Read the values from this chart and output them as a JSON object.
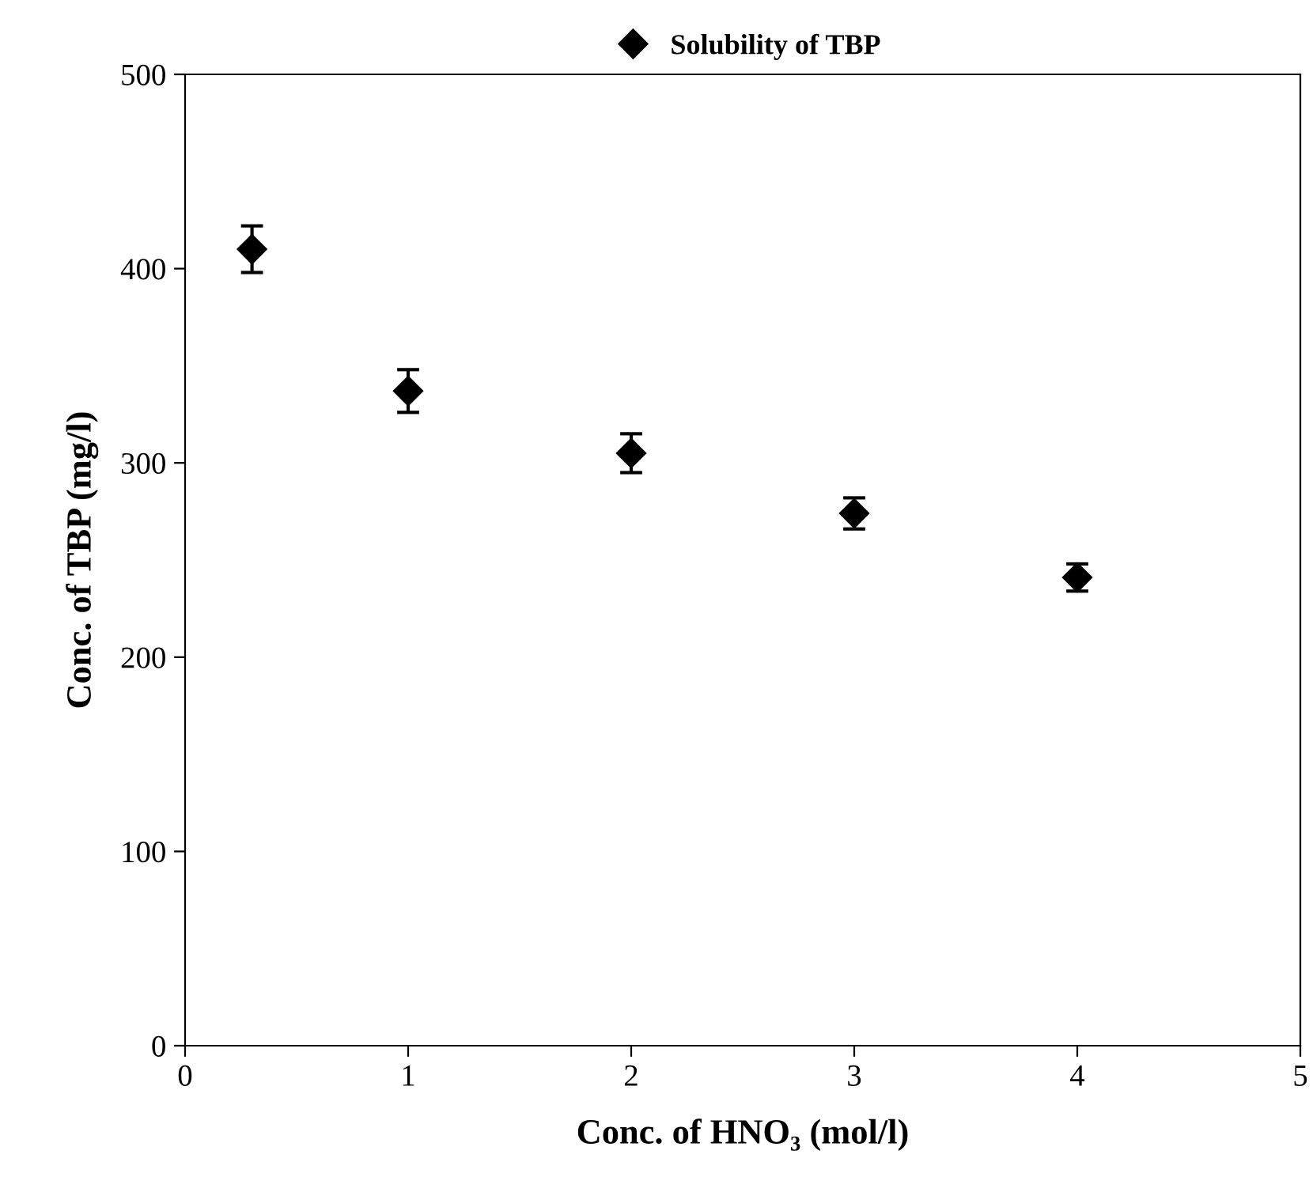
{
  "chart_data": {
    "type": "scatter",
    "xlabel": "Conc. of HNO₃ (mol/l)",
    "ylabel": "Conc. of TBP (mg/l)",
    "series": [
      {
        "name": "Solubility of TBP",
        "color": "#000000",
        "x": [
          0.3,
          1,
          2,
          3,
          4
        ],
        "values": [
          410,
          337,
          305,
          274,
          241
        ],
        "errors": [
          12,
          11,
          10,
          8,
          7
        ]
      }
    ],
    "xlim": [
      0,
      5
    ],
    "xticks": [
      0,
      1,
      2,
      3,
      4,
      5
    ],
    "ylim": [
      0,
      500
    ],
    "yticks": [
      0,
      100,
      200,
      300,
      400,
      500
    ],
    "marker": "diamond",
    "grid": false,
    "legend": "top"
  }
}
